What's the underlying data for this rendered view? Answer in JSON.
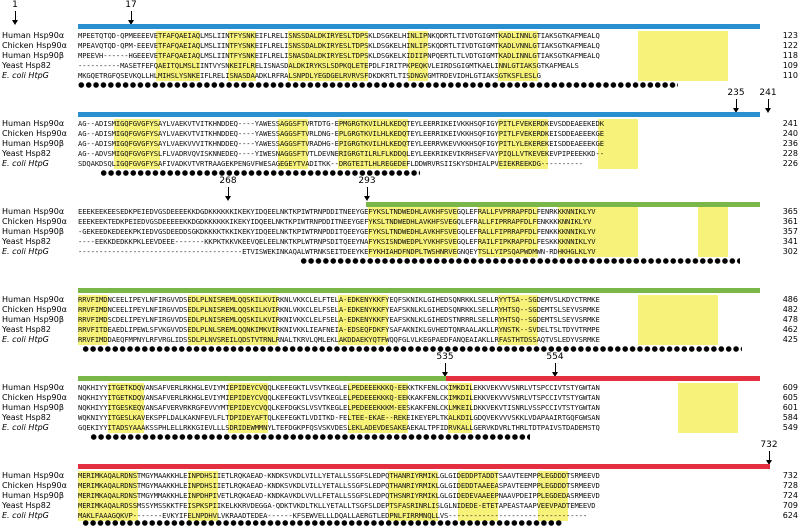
{
  "colors": {
    "blue_domain": "#2a8fce",
    "green_domain": "#7ab648",
    "red_domain": "#e32f3f",
    "identity_highlight": "#f7f27a"
  },
  "species": [
    {
      "label": "Human Hsp90α",
      "italic": false
    },
    {
      "label": "Chicken Hsp90α",
      "italic": false
    },
    {
      "label": "Human Hsp90β",
      "italic": false
    },
    {
      "label": "Yeast Hsp82",
      "italic": false
    },
    {
      "label": "E. coli HtpG",
      "italic": true
    }
  ],
  "blocks": [
    {
      "markers": [
        "1",
        "17"
      ],
      "rows": [
        {
          "seq": "MPEETQTQD-QPMEEEEVETFAFQAEIAQLMSLIINTFYSNKEIFLRELISNSSDALDKIRYESLTDPSKLDSGKELHINLIPNKQDRTLTIVDTGIGMTKADLINNLGTIAKSGTKAFMEALQ",
          "end": "123"
        },
        {
          "seq": "MPEAVQTQD-QPM-EEEVETFAFQAEIAQLMSLIINTFYSNKEIFLRELISNSSDALDKIRYESLTDPSKLDSGKELHINLIPSKQDRTLTIVDTGIGMTKADLVNNLGTIAKSGTKAFMEALQ",
          "end": "122"
        },
        {
          "seq": "MPEEVH------HGEEEVETFAFQAEIAQLMSLIINTFYSNKEIFLRELISNASDALDKIRYESLTDPSKLDSGKELKIDIIPNPQERTLTLVDTGIGMTKADLINNLGTIAKSGTKAFMEALQ",
          "end": "118"
        },
        {
          "seq": "----------MASETFEFQAEITQLMSLIINTVYSNKEIFLRELISNASDALDKIRYKSLSDPKQLETEPDLFIRITPKPEQKVLEIRDSGIGMTKAELINNLGTIAKSGTKAFMEALS",
          "end": "109"
        },
        {
          "seq": "MKGQETRGFQSEVKQLLHLMIHSLYSNKEIFLRELISNASDAADKLRFRALSNPDLYEGDGELRVRVSFDKDKRTLTISDNGVGMTRDEVIDHLGTIAKSGTKSFLESLG",
          "end": "110"
        }
      ]
    },
    {
      "markers": [
        "235",
        "241"
      ],
      "rows": [
        {
          "seq": "AG--ADISMIGQFGVGFYSAYLVAEKVTVITKHNDDEQ----YAWESSAGGSFTVRTDTG-EPMGRGTKVILHLKEDQTEYLEERRIKEIVKKHSQFIGYPITLFVEKERDKEVSDDEAEEKEDK",
          "end": "241"
        },
        {
          "seq": "AG--ADISMIGQFGVGFYSAYLVAEKVTVITKHNDDEQ----YAWESSAGGSFTVRLDNG-EPLGRGTKVILHLKEDQTEYLEERRIKEIVKKHSQFIGYPITLFVEKERDKEISDDEAEEEKGE",
          "end": "240"
        },
        {
          "seq": "AG--ADISMIGQFGVGFYSAYLVAEKVVVITKHNDDEQ----YAWESSAGGSFTVRADHG-EPIGRGTKVILHLKEDQTEYLEERRVKEVVKKHSQFIGYPITLYLEKEREKEISDDEAEEEKGE",
          "end": "236"
        },
        {
          "seq": "AG--ADVSMIGQFGVGFYSLFLVADRVQVISKNNEDEQ----YIWESNAGGSFTVTLDEVNERIGRGTILRLFLKDDQLEYLEEKRIKEVIKRHSEFVAYPIQLLVTKEVEKEVPIPEEEKKD--",
          "end": "228"
        },
        {
          "seq": "SDQAKDSQLIGQFGVGFYSAFIVADKVTVRTRAAGEKPENGVFWESAGEGEYTVADITKK--DRGTEITLHLREGEDEFLDDWRVRSIISKYSDHIALPVEIEKREEKDG----------",
          "end": "226"
        }
      ]
    },
    {
      "markers": [
        "268",
        "293"
      ],
      "rows": [
        {
          "seq": "EEEKEEKEESEDKPEIEDVGSDEEEEKKDGDKKKKKKIKEKYIDQEELNKTKPIWTRNPDDITNEEYGEFYKSLTNDWEDHLAVKHFSVEGQLEFRALLFVPRRAPFDLFENRKKKNNIKLYV",
          "end": "365"
        },
        {
          "seq": "EEEKEEKTEDKPEIEDVGSDEEEEEKKDGDKKKKKKIKEKYIDQEELNKTKPIWTRNPDDITNEEYGEFYKSLTNDWEDHLAVKHFSVEGQLEFRALLFIPRRAPFDLFENKKKKNNIKLYV",
          "end": "361"
        },
        {
          "seq": "-GEKEEDKEDEEKPKIEDVGSDEEDDSGKDKKKKTKKIKEKYIDQEELNKTKPIWTRNPDDITQEEYGEFYKSLTNDWEDHLAVKHFSVEGQLEFRALLFIPRRAPFDLFENKKKKNNIKLYV",
          "end": "357"
        },
        {
          "seq": "----EEKKDEDKKPKLEEVDEEE-------KKPKTKKVKEEVQELEELNKTKPLWTRNPSDITQEEYNAFYKSISNDWEDPLYVKHFSVEGQLEFRAILFIPKRAPFDLFESKKKKNNIKLYV",
          "end": "341"
        },
        {
          "seq": "---------------------------------------ETVISWEKINKAQALWTRNKSEITDEEYKEFYKHIAHDFNDPLTWSHNRVEGNQEYTSLLYIPSQAPWDMWN-RDHKHGLKLYV",
          "end": "302"
        }
      ]
    },
    {
      "markers": [],
      "rows": [
        {
          "seq": "RRVFIMDNCEELIPEYLNFIRGVVDSEDLPLNISREMLQQSKILKVIRKNLVKKCLELFTELA-EDKENYKKFYEQFSKNIKLGIHEDSQNRKKLSELLRYYTSA--SGDEMVSLKDYCTRMKE",
          "end": "486"
        },
        {
          "seq": "RRVFIMDNCEELIPEYLNFIRGVVDSEDLPLNISREMLQQSKILKVIRKNLVKKCLELFSELA-EDKENYKKFYEAFSKNLKLGIHEDSQNRKKLSELLRYHTSQ--SGDEMTSLSEYVSRMKE",
          "end": "482"
        },
        {
          "seq": "RRVFIMDSCDELIPEYLNFIRGVVDSEDLPLNISREMLQQSKILKVIRKNIVKKCLELFSELA-EDKENYKKFYEAFSKNLKLGIHEDSTNRRRLSELLRYHTSQ--SGDEMTSLSEYVSRMKE",
          "end": "478"
        },
        {
          "seq": "RRVFITDEAEDLIPEWLSFVKGVVDSEDLPLNLSREMLQQNKIMKVIRKNIVKKLIEAFNEIA-EDSEQFDKFYSAFAKNIKLGVHEDTQNRAALAKLLRYNSTK--SVDELTSLTDYVTRMPE",
          "end": "462"
        },
        {
          "seq": "RRVFIMDDAEQFMPNYLRFVRGLIDSSDLPLNVSREILQDSTVTRNLRNALTKRVLQMLEKLAKDDAEKYQTFWQQFGLVLKEGPAEDFANQEAIAKLLRFASTHTDSSAQTVSLEDYVSRMKE",
          "end": "425"
        }
      ]
    },
    {
      "markers": [
        "535",
        "554"
      ],
      "rows": [
        {
          "seq": "NQKHIYYITGETKDQVANSAFVERLRKHGLEVIYMIEPIDEYCVQQLKEFEGKTLVSVTKEGLELPEDEEEKKKQ-EEKKTKFENLCKIMKDILEKKVEKVVVSNRLVTSPCCIVTSTYGWTAN",
          "end": "609"
        },
        {
          "seq": "NQKHIYYITGETKDQVANSAFVERLRKHGLEVIYMIEPIDEYCVQQLKEFEGKTLVSVTKEGLELPEDEEEKKKQ-EEKKAKFENLCKIMKDILEKKVEKVVVSNRLVTSPCCIVTSTYGWTAN",
          "end": "605"
        },
        {
          "seq": "NQKHIYYITGESKEQVANSAFVERVRKRGFEVVYMTEPIDEYCVQQLKEFDGKSLVSVTKEGLELPEDEEEKKKM-EESKAKFENLCKLMKEILDKKVEKVTISNRLVSSPCCIVTSTYGWTAN",
          "end": "601"
        },
        {
          "seq": "WQKNIYYITGESLKAVEKSPFLDALKAKNFEVLFLTDPIDEYAFTQLKEFEGKTLVDITKD-FELTEE-EKAE--REKEIKEYEPLTKALKDILGDQVEKVVVSKKLVDAPAAIRTGQFGWSAN",
          "end": "584"
        },
        {
          "seq": "GQEKIYYITADSYAAAKSSPHLELLRKKGIEVLLLSDRIDEWMMNYLTEFDGKPFQSVSKVDESLEKLADEVDESAKEAEKALTPFIDRVKALLGERVKDVRLTHRLTDTPAIVSTDADEMSTQ",
          "end": "549"
        }
      ]
    },
    {
      "markers": [
        "732"
      ],
      "rows": [
        {
          "seq": "MERIMKAQALRDNSTMGYMAAKKHLEINPDHSIIETLRQKAEAD-KNDKSVKDLVILLYETALLSSGFSLEDPQTHANRIYRMIKLGLGIDEDDPTADDTSAAVTEEMPPLEGDDDTSRMEEVD",
          "end": "732"
        },
        {
          "seq": "MERIMKAQALRDNSTMGYMAAKKHLEINPDHSIIETLRQKAEAD-KNDKSVKDLVILLYETALLSSGFSLEDPQTHANRIYRMIKLGLGIDEDDTAAEEASPAVTEEMPPLEGDDDTSRMEEVD",
          "end": "728"
        },
        {
          "seq": "MERIMKAQALRDNSTMGYMMAKKHLEINPDHPIVETLRQKAEAD-KNDKAVKDLVVLLFETALLSSGFSLEDPQTHSNRIYRMIKLGLGIDEDEVAAEEPNAAVPDEIPPLEGDEDASRMEEVD",
          "end": "724"
        },
        {
          "seq": "MERIMKAQALRDSSMSSYMSSKKTFEISPKSPIIKELKKRVDEGGA-QDKTVKDLTKLLYETALLTSGFSLDEPTSFASRINRLISLGLNIDEDE-ETETAPEASTAAPVEEVPADTEMEEVD",
          "end": "709"
        },
        {
          "seq": "MAKLFAAAGQKVP-------EVKYIFELNPDHVLVKRAADTEDEA------KFSEWVELLLDQALLAERGTLEDPNLFIRRMNQLLVS---------------------------------",
          "end": "624"
        }
      ]
    }
  ]
}
